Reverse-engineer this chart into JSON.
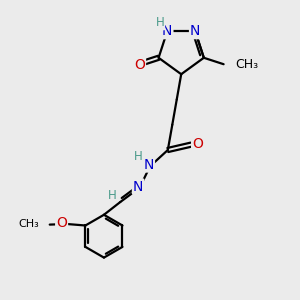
{
  "bg_color": "#ebebeb",
  "atom_colors": {
    "C": "#000000",
    "N": "#0000cc",
    "O": "#cc0000",
    "H": "#4a9a8a"
  },
  "bond_color": "#000000",
  "bond_width": 1.6,
  "font_size_atoms": 10,
  "font_size_small": 8.5,
  "font_size_methyl": 9
}
